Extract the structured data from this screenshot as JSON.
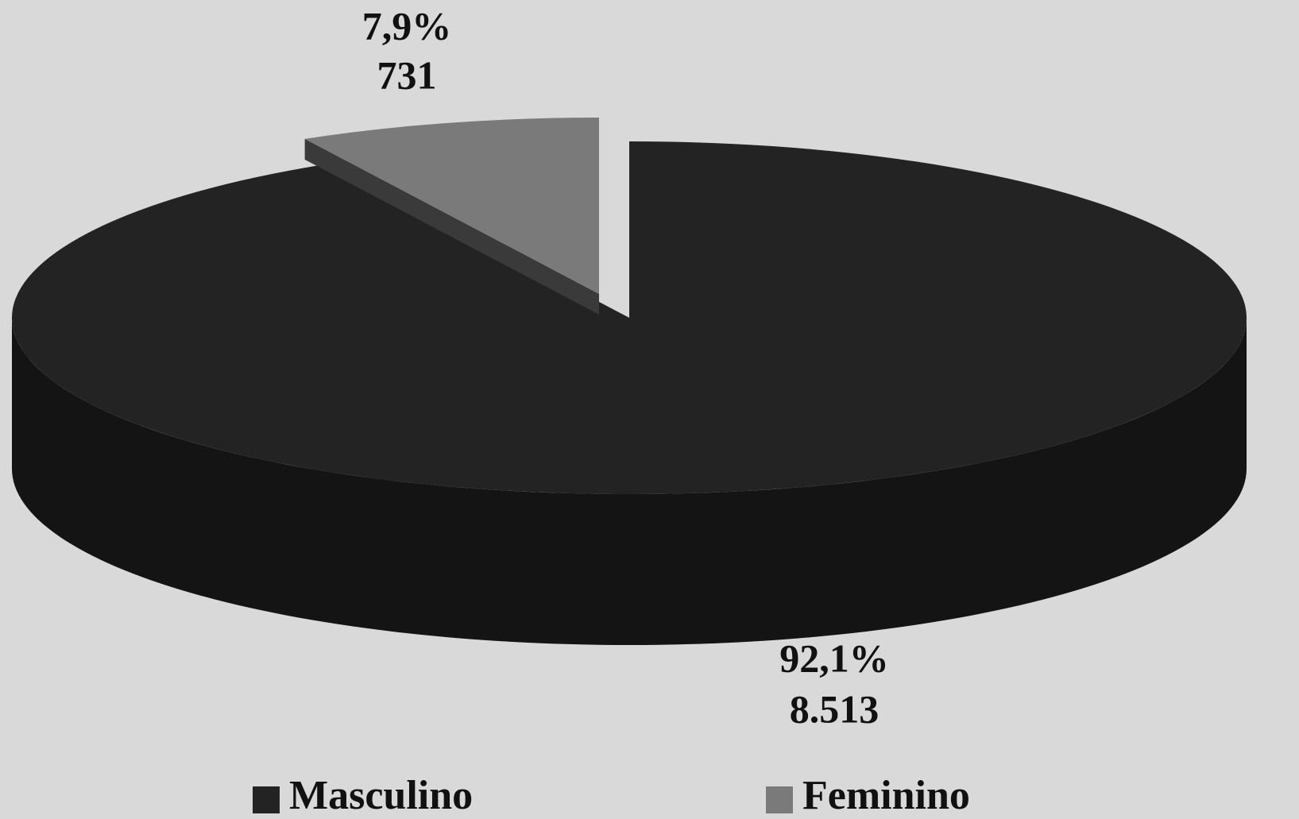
{
  "chart_data": {
    "type": "pie",
    "categories": [
      "Masculino",
      "Feminino"
    ],
    "values": [
      8513,
      731
    ],
    "value_labels": [
      "8.513",
      "731"
    ],
    "percents": [
      92.1,
      7.9
    ],
    "percent_labels": [
      "92,1%",
      "7,9%"
    ],
    "colors": [
      "#232323",
      "#7a7a7a"
    ],
    "legend": "bottom"
  }
}
